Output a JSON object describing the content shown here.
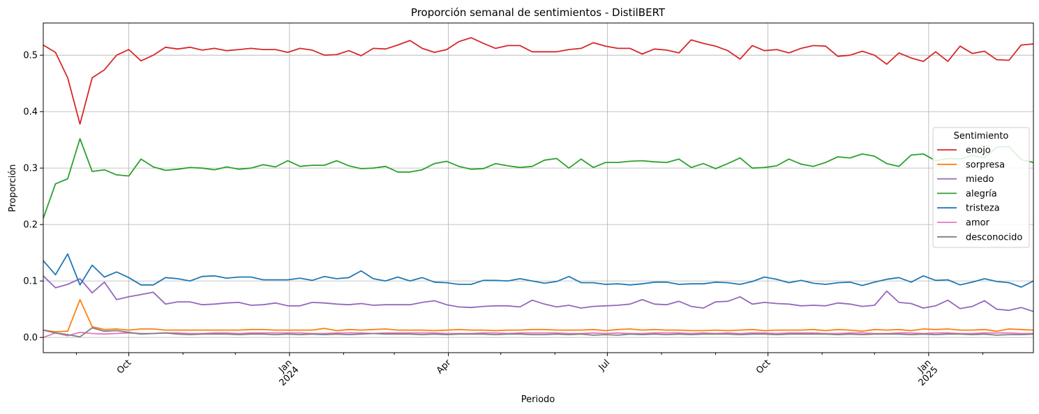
{
  "chart_data": {
    "type": "line",
    "title": "Proporción semanal de sentimientos - DistilBERT",
    "xlabel": "Periodo",
    "ylabel": "Proporción",
    "x_start": "2023-08-13",
    "x_range": [
      "2023-08-13",
      "2025-03-02"
    ],
    "ylim": [
      -0.027,
      0.557
    ],
    "yticks": [
      0.0,
      0.1,
      0.2,
      0.3,
      0.4,
      0.5
    ],
    "ytick_labels": [
      "0.0",
      "0.1",
      "0.2",
      "0.3",
      "0.4",
      "0.5"
    ],
    "xticks_major": [
      {
        "date": "2023-10-01",
        "lines": [
          "Oct"
        ]
      },
      {
        "date": "2024-01-01",
        "lines": [
          "Jan",
          "2024"
        ]
      },
      {
        "date": "2024-04-01",
        "lines": [
          "Apr"
        ]
      },
      {
        "date": "2024-07-01",
        "lines": [
          "Jul"
        ]
      },
      {
        "date": "2024-10-01",
        "lines": [
          "Oct"
        ]
      },
      {
        "date": "2025-01-01",
        "lines": [
          "Jan",
          "2025"
        ]
      }
    ],
    "xticks_minor": [
      "2023-09-01",
      "2023-11-01",
      "2023-12-01",
      "2024-02-01",
      "2024-03-01",
      "2024-05-01",
      "2024-06-01",
      "2024-08-01",
      "2024-09-01",
      "2024-11-01",
      "2024-12-01",
      "2025-02-01"
    ],
    "grid": true,
    "legend": {
      "title": "Sentimiento",
      "position": "center-right"
    },
    "series": [
      {
        "name": "enojo",
        "color": "#d62728",
        "values": [
          0.518,
          0.505,
          0.46,
          0.378,
          0.46,
          0.474,
          0.5,
          0.51,
          0.49,
          0.5,
          0.514,
          0.511,
          0.514,
          0.509,
          0.512,
          0.508,
          0.51,
          0.512,
          0.51,
          0.51,
          0.505,
          0.512,
          0.509,
          0.5,
          0.501,
          0.508,
          0.499,
          0.512,
          0.511,
          0.518,
          0.526,
          0.512,
          0.505,
          0.51,
          0.524,
          0.531,
          0.521,
          0.512,
          0.517,
          0.517,
          0.506,
          0.506,
          0.506,
          0.51,
          0.512,
          0.522,
          0.516,
          0.512,
          0.512,
          0.502,
          0.511,
          0.509,
          0.504,
          0.527,
          0.521,
          0.516,
          0.508,
          0.493,
          0.517,
          0.508,
          0.51,
          0.504,
          0.512,
          0.517,
          0.516,
          0.498,
          0.5,
          0.507,
          0.5,
          0.484,
          0.504,
          0.495,
          0.489,
          0.506,
          0.489,
          0.516,
          0.503,
          0.507,
          0.492,
          0.491,
          0.518,
          0.52
        ]
      },
      {
        "name": "sorpresa",
        "color": "#ff7f0e",
        "values": [
          0.013,
          0.01,
          0.011,
          0.067,
          0.019,
          0.014,
          0.015,
          0.013,
          0.015,
          0.015,
          0.013,
          0.013,
          0.013,
          0.013,
          0.013,
          0.013,
          0.013,
          0.014,
          0.014,
          0.013,
          0.013,
          0.013,
          0.013,
          0.016,
          0.012,
          0.014,
          0.013,
          0.014,
          0.015,
          0.013,
          0.013,
          0.013,
          0.012,
          0.013,
          0.014,
          0.013,
          0.013,
          0.012,
          0.013,
          0.013,
          0.014,
          0.014,
          0.013,
          0.013,
          0.013,
          0.014,
          0.012,
          0.014,
          0.015,
          0.013,
          0.014,
          0.013,
          0.013,
          0.012,
          0.012,
          0.013,
          0.012,
          0.013,
          0.014,
          0.012,
          0.013,
          0.013,
          0.013,
          0.014,
          0.012,
          0.014,
          0.013,
          0.011,
          0.014,
          0.013,
          0.014,
          0.012,
          0.015,
          0.014,
          0.015,
          0.013,
          0.013,
          0.014,
          0.011,
          0.015,
          0.014,
          0.013
        ]
      },
      {
        "name": "miedo",
        "color": "#9467bd",
        "values": [
          0.109,
          0.088,
          0.094,
          0.104,
          0.079,
          0.098,
          0.067,
          0.072,
          0.076,
          0.08,
          0.059,
          0.063,
          0.063,
          0.058,
          0.059,
          0.061,
          0.062,
          0.057,
          0.058,
          0.061,
          0.056,
          0.056,
          0.062,
          0.061,
          0.059,
          0.058,
          0.06,
          0.057,
          0.058,
          0.058,
          0.058,
          0.062,
          0.065,
          0.058,
          0.054,
          0.053,
          0.055,
          0.056,
          0.056,
          0.054,
          0.066,
          0.059,
          0.054,
          0.057,
          0.052,
          0.055,
          0.056,
          0.057,
          0.059,
          0.067,
          0.059,
          0.058,
          0.064,
          0.055,
          0.052,
          0.063,
          0.064,
          0.072,
          0.059,
          0.062,
          0.06,
          0.059,
          0.056,
          0.057,
          0.056,
          0.061,
          0.059,
          0.055,
          0.057,
          0.082,
          0.062,
          0.06,
          0.052,
          0.056,
          0.066,
          0.051,
          0.055,
          0.065,
          0.05,
          0.048,
          0.053,
          0.046
        ]
      },
      {
        "name": "alegría",
        "color": "#2ca02c",
        "values": [
          0.211,
          0.272,
          0.281,
          0.352,
          0.294,
          0.297,
          0.288,
          0.286,
          0.316,
          0.302,
          0.296,
          0.298,
          0.301,
          0.3,
          0.297,
          0.302,
          0.298,
          0.3,
          0.306,
          0.302,
          0.313,
          0.303,
          0.305,
          0.305,
          0.313,
          0.304,
          0.299,
          0.3,
          0.303,
          0.293,
          0.293,
          0.297,
          0.308,
          0.312,
          0.303,
          0.298,
          0.299,
          0.308,
          0.304,
          0.301,
          0.303,
          0.314,
          0.317,
          0.3,
          0.316,
          0.301,
          0.31,
          0.31,
          0.312,
          0.313,
          0.311,
          0.31,
          0.316,
          0.301,
          0.308,
          0.299,
          0.308,
          0.318,
          0.3,
          0.301,
          0.304,
          0.316,
          0.307,
          0.303,
          0.31,
          0.32,
          0.318,
          0.325,
          0.321,
          0.308,
          0.303,
          0.323,
          0.325,
          0.313,
          0.317,
          0.316,
          0.322,
          0.318,
          0.337,
          0.338,
          0.315,
          0.31
        ]
      },
      {
        "name": "tristeza",
        "color": "#1f77b4",
        "values": [
          0.136,
          0.111,
          0.148,
          0.093,
          0.128,
          0.107,
          0.116,
          0.106,
          0.093,
          0.093,
          0.106,
          0.104,
          0.1,
          0.108,
          0.109,
          0.105,
          0.107,
          0.107,
          0.102,
          0.102,
          0.102,
          0.105,
          0.101,
          0.108,
          0.104,
          0.106,
          0.118,
          0.104,
          0.1,
          0.107,
          0.1,
          0.106,
          0.098,
          0.097,
          0.094,
          0.094,
          0.101,
          0.101,
          0.1,
          0.104,
          0.1,
          0.096,
          0.099,
          0.108,
          0.097,
          0.097,
          0.094,
          0.095,
          0.093,
          0.095,
          0.098,
          0.098,
          0.094,
          0.095,
          0.095,
          0.098,
          0.097,
          0.094,
          0.099,
          0.107,
          0.103,
          0.097,
          0.101,
          0.096,
          0.094,
          0.097,
          0.098,
          0.092,
          0.098,
          0.103,
          0.106,
          0.098,
          0.109,
          0.101,
          0.102,
          0.093,
          0.098,
          0.104,
          0.099,
          0.097,
          0.089,
          0.1
        ]
      },
      {
        "name": "amor",
        "color": "#e377c2",
        "values": [
          0.0,
          0.008,
          0.003,
          0.009,
          0.007,
          0.006,
          0.007,
          0.008,
          0.007,
          0.007,
          0.008,
          0.008,
          0.007,
          0.007,
          0.008,
          0.008,
          0.007,
          0.008,
          0.008,
          0.008,
          0.008,
          0.008,
          0.007,
          0.007,
          0.008,
          0.008,
          0.008,
          0.007,
          0.008,
          0.008,
          0.008,
          0.008,
          0.008,
          0.007,
          0.007,
          0.007,
          0.008,
          0.008,
          0.007,
          0.008,
          0.008,
          0.008,
          0.008,
          0.007,
          0.007,
          0.008,
          0.007,
          0.008,
          0.007,
          0.007,
          0.008,
          0.008,
          0.008,
          0.007,
          0.008,
          0.007,
          0.008,
          0.007,
          0.008,
          0.008,
          0.007,
          0.008,
          0.008,
          0.008,
          0.007,
          0.007,
          0.008,
          0.008,
          0.007,
          0.007,
          0.008,
          0.008,
          0.007,
          0.008,
          0.008,
          0.007,
          0.007,
          0.008,
          0.008,
          0.008,
          0.007,
          0.007
        ]
      },
      {
        "name": "desconocido",
        "color": "#7f7f7f",
        "values": [
          0.013,
          0.008,
          0.005,
          0.001,
          0.017,
          0.011,
          0.012,
          0.009,
          0.006,
          0.007,
          0.008,
          0.006,
          0.005,
          0.006,
          0.006,
          0.006,
          0.005,
          0.006,
          0.006,
          0.005,
          0.006,
          0.005,
          0.006,
          0.005,
          0.006,
          0.005,
          0.006,
          0.007,
          0.006,
          0.006,
          0.006,
          0.005,
          0.006,
          0.005,
          0.006,
          0.006,
          0.006,
          0.005,
          0.006,
          0.006,
          0.005,
          0.005,
          0.006,
          0.005,
          0.006,
          0.004,
          0.005,
          0.004,
          0.006,
          0.005,
          0.006,
          0.005,
          0.006,
          0.005,
          0.006,
          0.006,
          0.006,
          0.005,
          0.006,
          0.006,
          0.005,
          0.006,
          0.006,
          0.006,
          0.006,
          0.005,
          0.006,
          0.005,
          0.006,
          0.006,
          0.006,
          0.005,
          0.006,
          0.005,
          0.006,
          0.006,
          0.005,
          0.006,
          0.004,
          0.005,
          0.005,
          0.006
        ]
      }
    ]
  }
}
